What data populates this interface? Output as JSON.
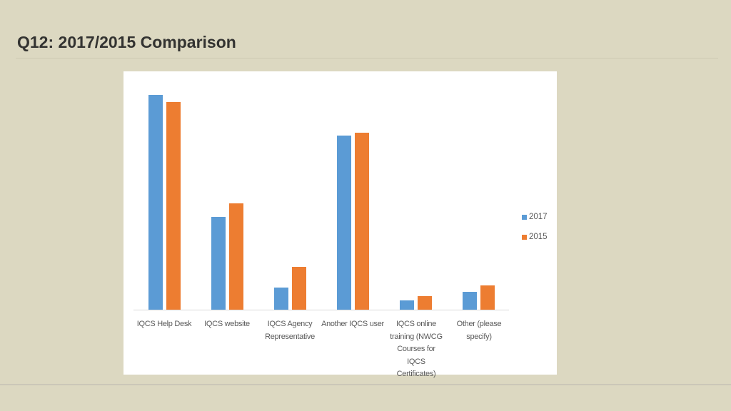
{
  "slide": {
    "title": "Q12: 2017/2015 Comparison"
  },
  "legend": {
    "items": [
      {
        "label": "2017",
        "color": "#5b9bd5"
      },
      {
        "label": "2015",
        "color": "#ed7d31"
      }
    ]
  },
  "categories_display": [
    "IQCS Help Desk",
    "IQCS website",
    "IQCS Agency Representative",
    "Another IQCS user",
    "IQCS online training (NWCG Courses for IQCS Certificates)",
    "Other (please specify)"
  ],
  "chart_data": {
    "type": "bar",
    "title": "",
    "xlabel": "",
    "ylabel": "",
    "note": "No y-axis shown; values are relative bar heights estimated from pixels",
    "categories": [
      "IQCS Help Desk",
      "IQCS website",
      "IQCS Agency Representative",
      "Another IQCS user",
      "IQCS online training (NWCG Courses for IQCS Certificates)",
      "Other (please specify)"
    ],
    "series": [
      {
        "name": "2017",
        "color": "#5b9bd5",
        "values": [
          301,
          130,
          31,
          244,
          13,
          25
        ]
      },
      {
        "name": "2015",
        "color": "#ed7d31",
        "values": [
          291,
          149,
          60,
          248,
          19,
          34
        ]
      }
    ],
    "ylim": [
      0,
      310
    ],
    "grid": false,
    "legend_position": "right"
  }
}
